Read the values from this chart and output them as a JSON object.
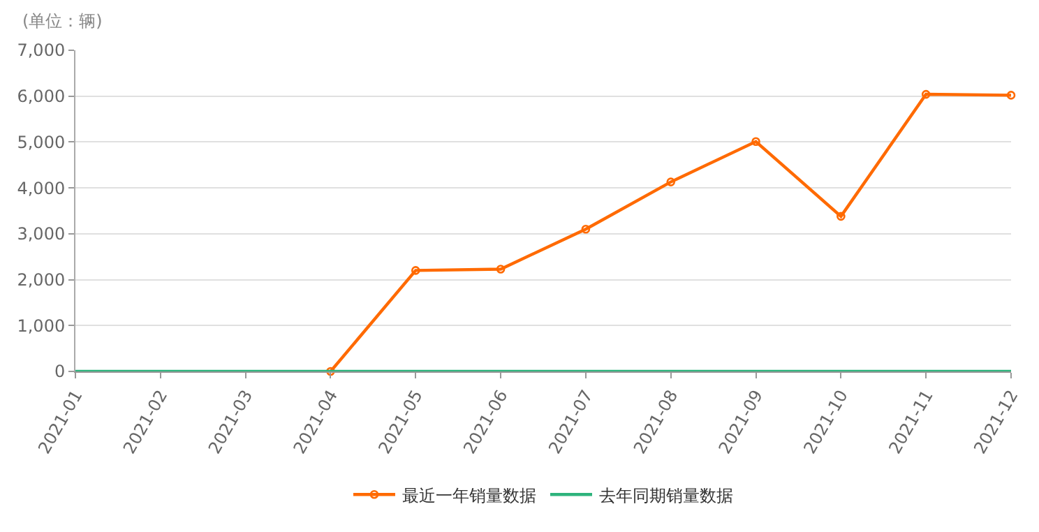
{
  "chart_data": {
    "type": "line",
    "ylabel": "(单位：辆)",
    "categories": [
      "2021-01",
      "2021-02",
      "2021-03",
      "2021-04",
      "2021-05",
      "2021-06",
      "2021-07",
      "2021-08",
      "2021-09",
      "2021-10",
      "2021-11",
      "2021-12"
    ],
    "series": [
      {
        "name": "最近一年销量数据",
        "color": "#ff6a00",
        "marker": "circle",
        "values": [
          null,
          null,
          null,
          0,
          2200,
          2230,
          3100,
          4130,
          5010,
          3380,
          6040,
          6020
        ]
      },
      {
        "name": "去年同期销量数据",
        "color": "#2db37c",
        "marker": "none",
        "values": [
          0,
          0,
          0,
          0,
          0,
          0,
          0,
          0,
          0,
          0,
          0,
          0
        ]
      }
    ],
    "ylim": [
      0,
      7000
    ],
    "yticks": [
      {
        "value": 0,
        "label": "0"
      },
      {
        "value": 1000,
        "label": "1,000"
      },
      {
        "value": 2000,
        "label": "2,000"
      },
      {
        "value": 3000,
        "label": "3,000"
      },
      {
        "value": 4000,
        "label": "4,000"
      },
      {
        "value": 5000,
        "label": "5,000"
      },
      {
        "value": 6000,
        "label": "6,000"
      },
      {
        "value": 7000,
        "label": "7,000"
      }
    ],
    "grid": "y",
    "legend": "bottom",
    "line_style": "solid"
  }
}
